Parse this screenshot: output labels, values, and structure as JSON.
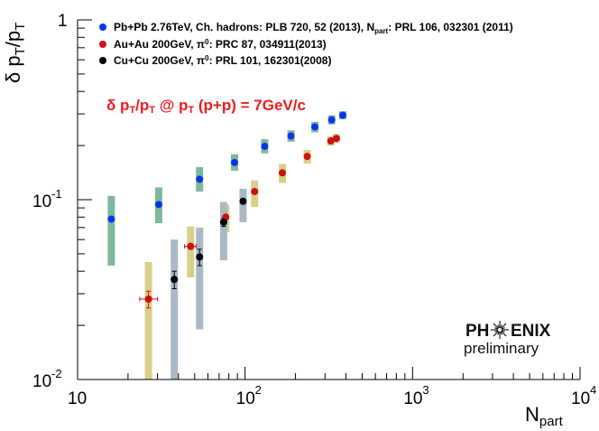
{
  "chart_data": {
    "type": "scatter",
    "xscale": "log",
    "yscale": "log",
    "xlim": [
      10,
      10000
    ],
    "ylim": [
      0.01,
      1
    ],
    "xlabel": "N_part",
    "ylabel": "δ p_T/p_T",
    "x_ticks": [
      {
        "value": 10,
        "label": "10"
      },
      {
        "value": 100,
        "label": "10",
        "exp": "2"
      },
      {
        "value": 1000,
        "label": "10",
        "exp": "3"
      },
      {
        "value": 10000,
        "label": "10",
        "exp": "4"
      }
    ],
    "y_ticks": [
      {
        "value": 0.01,
        "label": "10",
        "exp": "-2"
      },
      {
        "value": 0.1,
        "label": "10",
        "exp": "-1"
      },
      {
        "value": 1,
        "label": "1"
      }
    ],
    "annotation": "δ p_T/p_T @ p_T (p+p) = 7GeV/c",
    "series": [
      {
        "name": "Pb+Pb 2.76TeV, Ch. hadrons: PLB 720, 52 (2013), N_part: PRL 106, 032301 (2011)",
        "legend_label": "Pb+Pb 2.76TeV, Ch. hadrons: PLB 720, 52 (2013), N",
        "legend_sub": "part",
        "legend_tail": ": PRL 106, 032301 (2011)",
        "color": "#0a35ee",
        "syst_color": "#7fb89a",
        "points": [
          {
            "x": 15.9,
            "y": 0.078,
            "syst": [
              0.043,
              0.105
            ]
          },
          {
            "x": 30.5,
            "y": 0.094,
            "syst": [
              0.074,
              0.117
            ]
          },
          {
            "x": 53.5,
            "y": 0.13,
            "syst": [
              0.111,
              0.152
            ]
          },
          {
            "x": 86.5,
            "y": 0.161,
            "syst": [
              0.145,
              0.179
            ]
          },
          {
            "x": 131,
            "y": 0.198,
            "syst": [
              0.181,
              0.217
            ]
          },
          {
            "x": 188,
            "y": 0.226,
            "syst": [
              0.21,
              0.243
            ]
          },
          {
            "x": 261,
            "y": 0.254,
            "syst": [
              0.237,
              0.271
            ]
          },
          {
            "x": 329,
            "y": 0.278,
            "syst": [
              0.262,
              0.295
            ]
          },
          {
            "x": 383,
            "y": 0.295,
            "syst": [
              0.28,
              0.31
            ]
          }
        ]
      },
      {
        "name": "Au+Au 200GeV, π0: PRC 87, 034911(2013)",
        "legend_label": "Au+Au 200GeV, π",
        "legend_sup": "0",
        "legend_tail": ": PRC 87, 034911(2013)",
        "color": "#d01010",
        "syst_color": "#d8cf8b",
        "points": [
          {
            "x": 26.5,
            "y": 0.028,
            "syst": [
              0.01,
              0.045
            ],
            "xerr": [
              23.5,
              30.0
            ],
            "yerr": [
              0.025,
              0.031
            ]
          },
          {
            "x": 47.3,
            "y": 0.055,
            "syst": [
              0.037,
              0.071
            ],
            "xerr": [
              43.5,
              51.0
            ],
            "yerr": [
              0.053,
              0.057
            ]
          },
          {
            "x": 76.7,
            "y": 0.08,
            "syst": [
              0.066,
              0.094
            ]
          },
          {
            "x": 114,
            "y": 0.111,
            "syst": [
              0.091,
              0.128
            ]
          },
          {
            "x": 167,
            "y": 0.141,
            "syst": [
              0.124,
              0.158
            ]
          },
          {
            "x": 235,
            "y": 0.174,
            "syst": [
              0.159,
              0.189
            ]
          },
          {
            "x": 325,
            "y": 0.212,
            "syst": [
              0.2,
              0.225
            ]
          },
          {
            "x": 351,
            "y": 0.219,
            "syst": [
              0.207,
              0.232
            ]
          }
        ]
      },
      {
        "name": "Cu+Cu 200GeV, π0: PRL 101, 162301(2008)",
        "legend_label": "Cu+Cu 200GeV, π",
        "legend_sup": "0",
        "legend_tail": ": PRL 101, 162301(2008)",
        "color": "#000000",
        "syst_color": "#aab9c6",
        "points": [
          {
            "x": 37.8,
            "y": 0.036,
            "syst": [
              0.01,
              0.06
            ],
            "yerr": [
              0.032,
              0.04
            ]
          },
          {
            "x": 53.5,
            "y": 0.048,
            "syst": [
              0.019,
              0.07
            ],
            "yerr": [
              0.043,
              0.053
            ]
          },
          {
            "x": 74.5,
            "y": 0.075,
            "syst": [
              0.046,
              0.097
            ],
            "yerr": [
              0.071,
              0.079
            ]
          },
          {
            "x": 97.3,
            "y": 0.098,
            "syst": [
              0.075,
              0.115
            ]
          }
        ]
      }
    ]
  },
  "logo": {
    "text_left": "PH",
    "text_right": "ENIX",
    "subtitle": "preliminary"
  }
}
